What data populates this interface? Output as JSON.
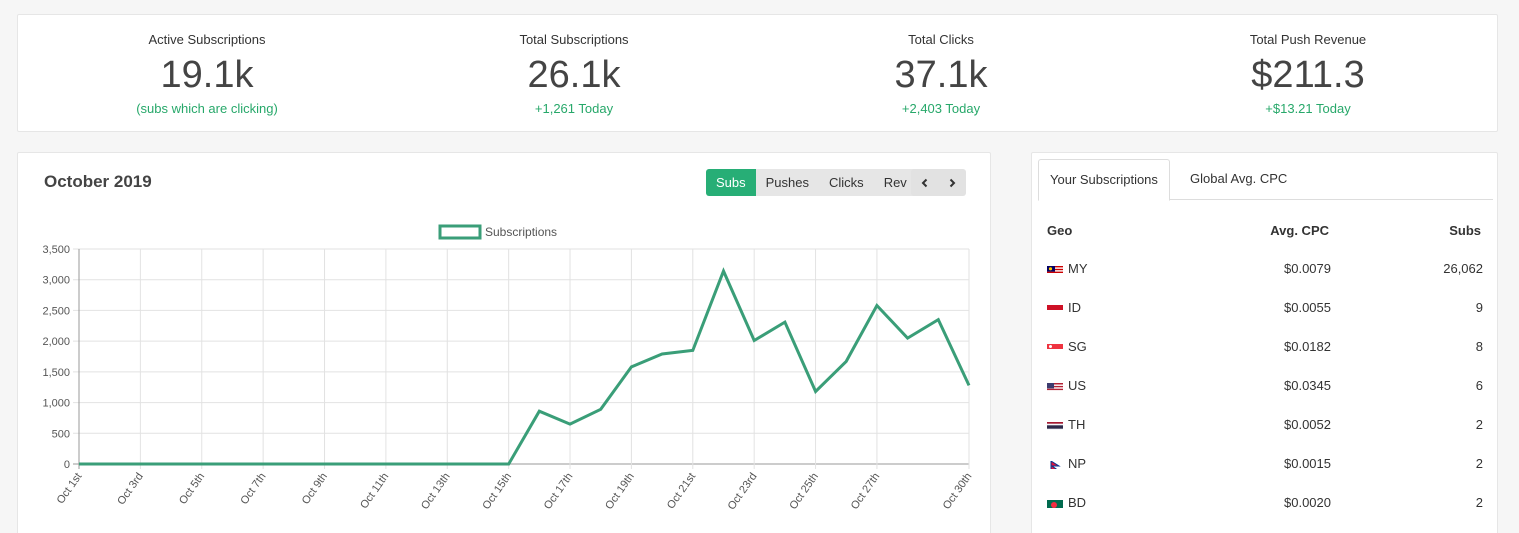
{
  "stats": [
    {
      "label": "Active Subscriptions",
      "value": "19.1k",
      "sub": "(subs which are clicking)"
    },
    {
      "label": "Total Subscriptions",
      "value": "26.1k",
      "sub": "+1,261 Today"
    },
    {
      "label": "Total Clicks",
      "value": "37.1k",
      "sub": "+2,403 Today"
    },
    {
      "label": "Total Push Revenue",
      "value": "$211.3",
      "sub": "+$13.21 Today"
    }
  ],
  "chart_panel": {
    "title": "October 2019",
    "metric_buttons": [
      "Subs",
      "Pushes",
      "Clicks",
      "Rev"
    ],
    "active_metric": "Subs",
    "prev_icon": "chevron-left-icon",
    "next_icon": "chevron-right-icon"
  },
  "chart_data": {
    "type": "line",
    "series": [
      {
        "name": "Subscriptions",
        "color": "#3a9e78",
        "values": [
          0,
          0,
          0,
          0,
          0,
          0,
          0,
          0,
          0,
          0,
          0,
          0,
          0,
          0,
          0,
          860,
          650,
          890,
          1580,
          1790,
          1850,
          3140,
          2010,
          2310,
          1180,
          1670,
          2580,
          2050,
          2350,
          1280
        ]
      }
    ],
    "x_tick_labels": [
      "Oct 1st",
      "Oct 3rd",
      "Oct 5th",
      "Oct 7th",
      "Oct 9th",
      "Oct 11th",
      "Oct 13th",
      "Oct 15th",
      "Oct 17th",
      "Oct 19th",
      "Oct 21st",
      "Oct 23rd",
      "Oct 25th",
      "Oct 27th",
      "Oct 30th"
    ],
    "y_ticks": [
      "0",
      "500",
      "1,000",
      "1,500",
      "2,000",
      "2,500",
      "3,000",
      "3,500"
    ],
    "ylim": [
      0,
      3500
    ],
    "grid": true,
    "legend": "top-center"
  },
  "table_panel": {
    "tabs": [
      "Your Subscriptions",
      "Global Avg. CPC"
    ],
    "active_tab": "Your Subscriptions",
    "headers": {
      "geo": "Geo",
      "cpc": "Avg. CPC",
      "subs": "Subs"
    },
    "rows": [
      {
        "flag": "my",
        "geo": "MY",
        "cpc": "$0.0079",
        "subs": "26,062"
      },
      {
        "flag": "id",
        "geo": "ID",
        "cpc": "$0.0055",
        "subs": "9"
      },
      {
        "flag": "sg",
        "geo": "SG",
        "cpc": "$0.0182",
        "subs": "8"
      },
      {
        "flag": "us",
        "geo": "US",
        "cpc": "$0.0345",
        "subs": "6"
      },
      {
        "flag": "th",
        "geo": "TH",
        "cpc": "$0.0052",
        "subs": "2"
      },
      {
        "flag": "np",
        "geo": "NP",
        "cpc": "$0.0015",
        "subs": "2"
      },
      {
        "flag": "bd",
        "geo": "BD",
        "cpc": "$0.0020",
        "subs": "2"
      }
    ]
  },
  "colors": {
    "accent": "#27ae76",
    "positive_text": "#27a86a"
  }
}
